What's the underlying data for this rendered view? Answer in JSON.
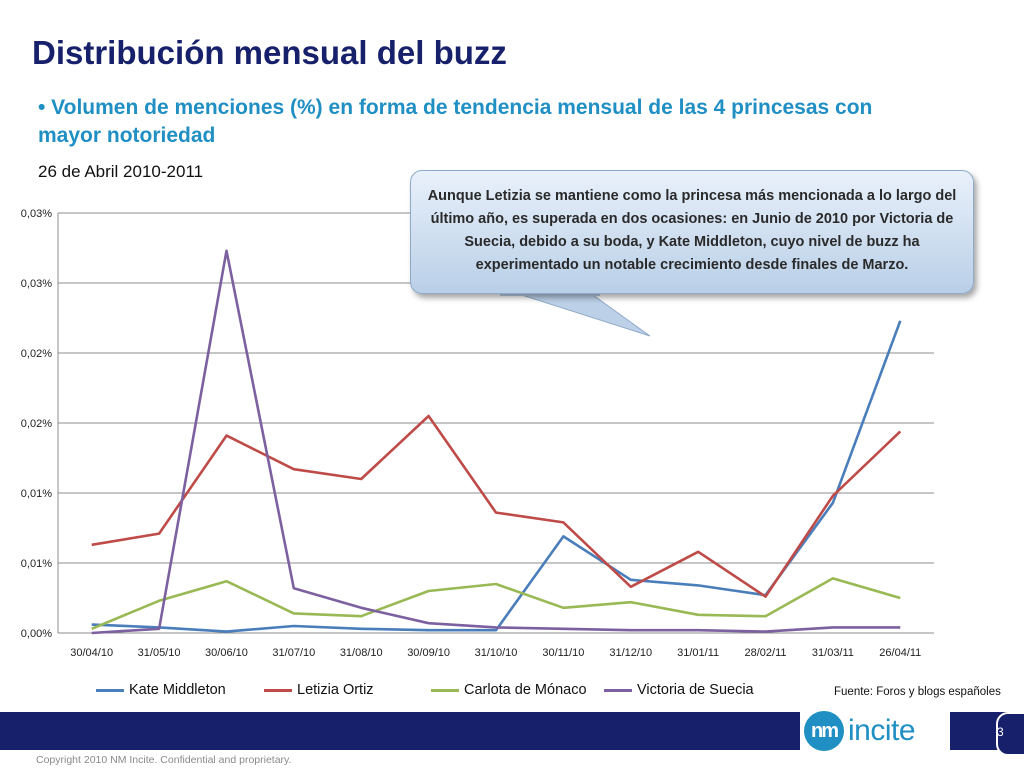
{
  "header": {
    "title": "Distribución mensual del buzz",
    "subtitle": "• Volumen de menciones (%) en forma de tendencia mensual de las 4 princesas con mayor notoriedad",
    "date_range": "26 de Abril 2010-2011"
  },
  "callout": {
    "text": "Aunque Letizia se mantiene como la princesa más mencionada a lo largo del último año, es superada en dos ocasiones: en Junio de 2010 por Victoria de Suecia, debido a su boda, y Kate Middleton, cuyo nivel de buzz ha experimentado un notable crecimiento desde finales de Marzo."
  },
  "source_note": "Fuente: Foros y blogs españoles",
  "footer": {
    "logo_mark": "nm",
    "logo_text": "incite",
    "page_number": "3",
    "copyright": "Copyright 2010 NM Incite.  Confidential and proprietary."
  },
  "chart_data": {
    "type": "line",
    "categories": [
      "30/04/10",
      "31/05/10",
      "30/06/10",
      "31/07/10",
      "31/08/10",
      "30/09/10",
      "31/10/10",
      "30/11/10",
      "31/12/10",
      "31/01/11",
      "28/02/11",
      "31/03/11",
      "26/04/11"
    ],
    "ylim": [
      0,
      0.03
    ],
    "yticks": [
      0,
      0.005,
      0.01,
      0.015,
      0.02,
      0.025,
      0.03
    ],
    "ytick_labels": [
      "0,00%",
      "0,01%",
      "0,01%",
      "0,02%",
      "0,02%",
      "0,03%",
      "0,03%"
    ],
    "grid": true,
    "legend_position": "bottom",
    "series": [
      {
        "name": "Kate Middleton",
        "color": "#4a7ebb",
        "values": [
          0.0006,
          0.0004,
          0.0001,
          0.0005,
          0.0003,
          0.0002,
          0.0002,
          0.0069,
          0.0038,
          0.0034,
          0.0027,
          0.0093,
          0.0223
        ]
      },
      {
        "name": "Letizia Ortiz",
        "color": "#be4b48",
        "values": [
          0.0063,
          0.0071,
          0.0141,
          0.0117,
          0.011,
          0.0155,
          0.0086,
          0.0079,
          0.0033,
          0.0058,
          0.0026,
          0.0098,
          0.0144
        ]
      },
      {
        "name": "Carlota de Mónaco",
        "color": "#98b954",
        "values": [
          0.0003,
          0.0023,
          0.0037,
          0.0014,
          0.0012,
          0.003,
          0.0035,
          0.0018,
          0.0022,
          0.0013,
          0.0012,
          0.0039,
          0.0025
        ]
      },
      {
        "name": "Victoria de Suecia",
        "color": "#7d60a0",
        "values": [
          0.0,
          0.0003,
          0.0273,
          0.0032,
          0.0018,
          0.0007,
          0.0004,
          0.0003,
          0.0002,
          0.0002,
          0.0001,
          0.0004,
          0.0004
        ]
      }
    ]
  }
}
